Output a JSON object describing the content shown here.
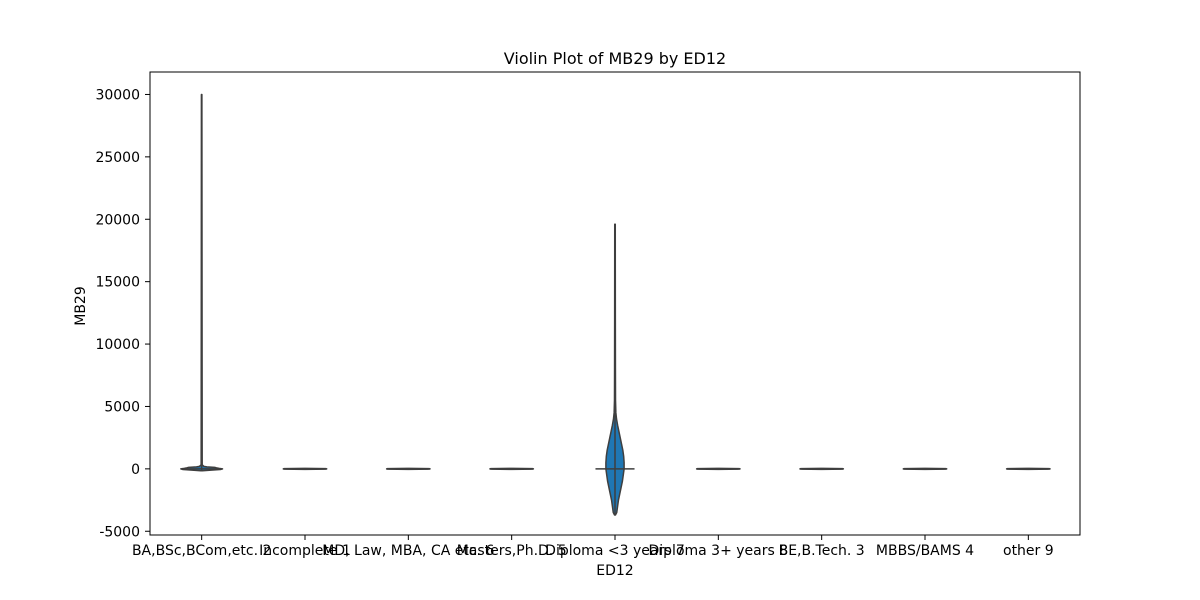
{
  "chart_data": {
    "type": "violin",
    "title": "Violin Plot of MB29 by ED12",
    "xlabel": "ED12",
    "ylabel": "MB29",
    "categories": [
      "BA,BSc,BCom,etc. 2",
      "Incomplete 1",
      "MD, Law, MBA, CA etc. 6",
      "Masters,Ph.D. 5",
      "Diploma <3 years 7",
      "Diploma 3+ years 8",
      "BE,B.Tech. 3",
      "MBBS/BAMS 4",
      "other 9"
    ],
    "y_ticks": [
      -5000,
      0,
      5000,
      10000,
      15000,
      20000,
      25000,
      30000
    ],
    "ylim": [
      -5300,
      31800
    ],
    "grid": false,
    "colors": {
      "fill": "#1f77b4",
      "line": "#3f3f3f"
    },
    "violins": [
      {
        "category": "BA,BSc,BCom,etc. 2",
        "median": 0,
        "min": -150,
        "max": 30000,
        "profile": [
          {
            "y": -150,
            "w": 0.02
          },
          {
            "y": -100,
            "w": 0.22
          },
          {
            "y": -50,
            "w": 0.43
          },
          {
            "y": 0,
            "w": 0.48
          },
          {
            "y": 40,
            "w": 0.4
          },
          {
            "y": 80,
            "w": 0.34
          },
          {
            "y": 120,
            "w": 0.3
          },
          {
            "y": 160,
            "w": 0.12
          },
          {
            "y": 200,
            "w": 0.05
          },
          {
            "y": 320,
            "w": 0.012
          },
          {
            "y": 30000,
            "w": 0.005
          }
        ]
      },
      {
        "category": "Incomplete 1",
        "median": 0,
        "min": -40,
        "max": 40,
        "profile": [
          {
            "y": -40,
            "w": 0.02
          },
          {
            "y": -20,
            "w": 0.48
          },
          {
            "y": 0,
            "w": 0.5
          },
          {
            "y": 20,
            "w": 0.48
          },
          {
            "y": 40,
            "w": 0.02
          }
        ]
      },
      {
        "category": "MD, Law, MBA, CA etc. 6",
        "median": 0,
        "min": -40,
        "max": 40,
        "profile": [
          {
            "y": -40,
            "w": 0.02
          },
          {
            "y": -20,
            "w": 0.48
          },
          {
            "y": 0,
            "w": 0.5
          },
          {
            "y": 20,
            "w": 0.48
          },
          {
            "y": 40,
            "w": 0.02
          }
        ]
      },
      {
        "category": "Masters,Ph.D. 5",
        "median": 0,
        "min": -40,
        "max": 40,
        "profile": [
          {
            "y": -40,
            "w": 0.02
          },
          {
            "y": -20,
            "w": 0.48
          },
          {
            "y": 0,
            "w": 0.5
          },
          {
            "y": 20,
            "w": 0.48
          },
          {
            "y": 40,
            "w": 0.02
          }
        ]
      },
      {
        "category": "Diploma <3 years 7",
        "median": 0,
        "min": -3700,
        "max": 19600,
        "profile": [
          {
            "y": -3700,
            "w": 0.01
          },
          {
            "y": -3500,
            "w": 0.04
          },
          {
            "y": -3000,
            "w": 0.06
          },
          {
            "y": -2500,
            "w": 0.08
          },
          {
            "y": -2000,
            "w": 0.11
          },
          {
            "y": -1500,
            "w": 0.14
          },
          {
            "y": -1000,
            "w": 0.17
          },
          {
            "y": -500,
            "w": 0.19
          },
          {
            "y": 0,
            "w": 0.21
          },
          {
            "y": 500,
            "w": 0.21
          },
          {
            "y": 1000,
            "w": 0.2
          },
          {
            "y": 1500,
            "w": 0.18
          },
          {
            "y": 2000,
            "w": 0.15
          },
          {
            "y": 2500,
            "w": 0.12
          },
          {
            "y": 3000,
            "w": 0.09
          },
          {
            "y": 3500,
            "w": 0.06
          },
          {
            "y": 4000,
            "w": 0.035
          },
          {
            "y": 4500,
            "w": 0.02
          },
          {
            "y": 5500,
            "w": 0.012
          },
          {
            "y": 8000,
            "w": 0.01
          },
          {
            "y": 12000,
            "w": 0.008
          },
          {
            "y": 16000,
            "w": 0.007
          },
          {
            "y": 19600,
            "w": 0.006
          }
        ]
      },
      {
        "category": "Diploma 3+ years 8",
        "median": 0,
        "min": -40,
        "max": 40,
        "profile": [
          {
            "y": -40,
            "w": 0.02
          },
          {
            "y": -20,
            "w": 0.48
          },
          {
            "y": 0,
            "w": 0.5
          },
          {
            "y": 20,
            "w": 0.48
          },
          {
            "y": 40,
            "w": 0.02
          }
        ]
      },
      {
        "category": "BE,B.Tech. 3",
        "median": 0,
        "min": -40,
        "max": 40,
        "profile": [
          {
            "y": -40,
            "w": 0.02
          },
          {
            "y": -20,
            "w": 0.48
          },
          {
            "y": 0,
            "w": 0.5
          },
          {
            "y": 20,
            "w": 0.48
          },
          {
            "y": 40,
            "w": 0.02
          }
        ]
      },
      {
        "category": "MBBS/BAMS 4",
        "median": 0,
        "min": -40,
        "max": 40,
        "profile": [
          {
            "y": -40,
            "w": 0.02
          },
          {
            "y": -20,
            "w": 0.48
          },
          {
            "y": 0,
            "w": 0.5
          },
          {
            "y": 20,
            "w": 0.48
          },
          {
            "y": 40,
            "w": 0.02
          }
        ]
      },
      {
        "category": "other 9",
        "median": 0,
        "min": -40,
        "max": 40,
        "profile": [
          {
            "y": -40,
            "w": 0.02
          },
          {
            "y": -20,
            "w": 0.48
          },
          {
            "y": 0,
            "w": 0.5
          },
          {
            "y": 20,
            "w": 0.48
          },
          {
            "y": 40,
            "w": 0.02
          }
        ]
      }
    ]
  }
}
